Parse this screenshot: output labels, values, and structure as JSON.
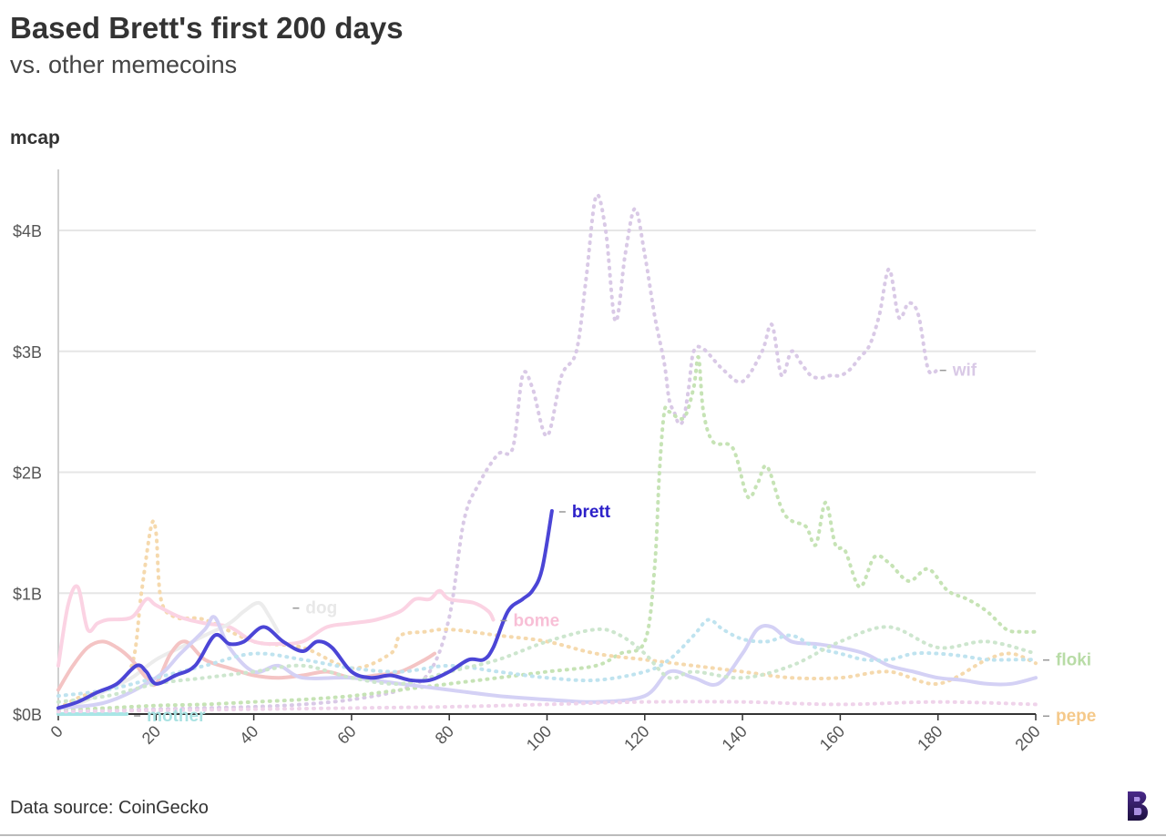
{
  "header": {
    "title": "Based Brett's first 200 days",
    "subtitle": "vs. other memecoins"
  },
  "footer": {
    "source": "Data source: CoinGecko"
  },
  "logo_icon": "brand-b-logo-icon",
  "chart_data": {
    "type": "line",
    "title": "Based Brett's first 200 days",
    "subtitle": "vs. other memecoins",
    "ylabel": "mcap",
    "xlabel": "",
    "xlim": [
      0,
      200
    ],
    "ylim": [
      0,
      4.5
    ],
    "x_ticks": [
      0,
      20,
      40,
      60,
      80,
      100,
      120,
      140,
      160,
      180,
      200
    ],
    "x_tick_labels": [
      "0",
      "20",
      "40",
      "60",
      "80",
      "100",
      "120",
      "140",
      "160",
      "180",
      "200"
    ],
    "y_ticks": [
      0,
      1,
      2,
      3,
      4
    ],
    "y_tick_labels": [
      "$0B",
      "$1B",
      "$2B",
      "$3B",
      "$4B"
    ],
    "grid": "horizontal",
    "series": [
      {
        "name": "wif",
        "color": "#d9c9e6",
        "style": "dotted",
        "label_color": "#d9c9e6",
        "x": [
          0,
          10,
          20,
          30,
          40,
          50,
          60,
          70,
          76,
          80,
          83,
          86,
          90,
          93,
          95,
          97,
          100,
          103,
          106,
          108,
          110,
          112,
          114,
          116,
          118,
          120,
          122,
          124,
          125,
          126,
          127,
          128,
          129,
          130,
          132,
          136,
          140,
          144,
          146,
          148,
          150,
          152,
          154,
          156,
          158,
          160,
          162,
          164,
          166,
          168,
          170,
          172,
          174,
          176,
          178,
          180
        ],
        "y": [
          0.02,
          0.03,
          0.04,
          0.05,
          0.06,
          0.08,
          0.12,
          0.2,
          0.35,
          0.8,
          1.6,
          1.9,
          2.15,
          2.2,
          2.8,
          2.7,
          2.3,
          2.8,
          3.0,
          3.6,
          4.28,
          4.0,
          3.25,
          3.8,
          4.18,
          3.8,
          3.3,
          2.9,
          2.6,
          2.5,
          2.4,
          2.45,
          2.7,
          3.0,
          3.02,
          2.85,
          2.75,
          3.0,
          3.22,
          2.8,
          3.0,
          2.9,
          2.8,
          2.78,
          2.8,
          2.8,
          2.85,
          2.95,
          3.05,
          3.3,
          3.68,
          3.28,
          3.4,
          3.3,
          2.85,
          2.85
        ]
      },
      {
        "name": "floki",
        "color": "#c6e3b5",
        "style": "dotted",
        "label_color": "#b8dca6",
        "x": [
          0,
          10,
          20,
          30,
          40,
          50,
          60,
          70,
          80,
          90,
          100,
          110,
          115,
          120,
          122,
          123,
          124,
          125,
          128,
          130,
          131,
          132,
          134,
          138,
          141,
          143,
          145,
          148,
          150,
          153,
          155,
          157,
          159,
          161,
          164,
          167,
          170,
          174,
          178,
          182,
          186,
          190,
          194,
          197,
          200
        ],
        "y": [
          0.03,
          0.05,
          0.07,
          0.08,
          0.1,
          0.12,
          0.15,
          0.2,
          0.25,
          0.3,
          0.35,
          0.4,
          0.5,
          0.6,
          1.2,
          2.0,
          2.5,
          2.5,
          2.45,
          2.7,
          2.95,
          2.5,
          2.25,
          2.2,
          1.8,
          1.9,
          2.05,
          1.7,
          1.6,
          1.55,
          1.4,
          1.75,
          1.4,
          1.35,
          1.05,
          1.3,
          1.25,
          1.1,
          1.2,
          1.02,
          0.95,
          0.85,
          0.7,
          0.68,
          0.68
        ]
      },
      {
        "name": "pepe",
        "color": "#f5d9ad",
        "style": "dotted",
        "label_color": "#f5c98a",
        "x": [
          0,
          5,
          10,
          15,
          17,
          19,
          20,
          21,
          24,
          30,
          40,
          50,
          60,
          68,
          70,
          75,
          80,
          90,
          100,
          110,
          120,
          130,
          140,
          150,
          160,
          170,
          180,
          190,
          195,
          200
        ],
        "y": [
          0.05,
          0.15,
          0.2,
          0.4,
          1.0,
          1.55,
          1.5,
          0.95,
          0.8,
          0.78,
          0.6,
          0.55,
          0.38,
          0.5,
          0.65,
          0.68,
          0.7,
          0.65,
          0.6,
          0.5,
          0.45,
          0.4,
          0.35,
          0.3,
          0.3,
          0.35,
          0.25,
          0.45,
          0.5,
          0.42
        ]
      },
      {
        "name": "brett",
        "color": "#4b45d6",
        "style": "solid",
        "label_color": "#2d21c9",
        "x": [
          0,
          4,
          8,
          12,
          16,
          18,
          20,
          24,
          28,
          32,
          35,
          38,
          42,
          46,
          50,
          53,
          56,
          60,
          64,
          68,
          72,
          76,
          80,
          84,
          87,
          89,
          92,
          95,
          97,
          99,
          101
        ],
        "y": [
          0.05,
          0.1,
          0.18,
          0.25,
          0.4,
          0.35,
          0.25,
          0.32,
          0.4,
          0.65,
          0.58,
          0.6,
          0.72,
          0.6,
          0.52,
          0.6,
          0.55,
          0.35,
          0.3,
          0.32,
          0.28,
          0.28,
          0.35,
          0.45,
          0.45,
          0.55,
          0.85,
          0.95,
          1.02,
          1.2,
          1.68
        ]
      },
      {
        "name": "bome",
        "color": "#fbd3e3",
        "style": "solid",
        "label_color": "#f8bfd6",
        "x": [
          0,
          2,
          4,
          6,
          8,
          10,
          15,
          18,
          20,
          25,
          30,
          35,
          40,
          45,
          50,
          55,
          60,
          65,
          70,
          73,
          76,
          78,
          80,
          85,
          88,
          89
        ],
        "y": [
          0.4,
          0.9,
          1.05,
          0.7,
          0.75,
          0.78,
          0.8,
          0.95,
          0.9,
          0.8,
          0.75,
          0.72,
          0.6,
          0.58,
          0.6,
          0.72,
          0.75,
          0.78,
          0.85,
          0.95,
          0.95,
          1.02,
          0.95,
          0.92,
          0.85,
          0.78
        ]
      },
      {
        "name": "dog",
        "color": "#ececec",
        "style": "solid",
        "label_color": "#e8e8e8",
        "x": [
          0,
          5,
          10,
          15,
          20,
          25,
          30,
          35,
          38,
          41,
          43,
          45
        ],
        "y": [
          0.05,
          0.1,
          0.2,
          0.3,
          0.45,
          0.55,
          0.65,
          0.75,
          0.85,
          0.92,
          0.82,
          0.68
        ]
      },
      {
        "name": "mother",
        "color": "#a9e6e6",
        "style": "solid",
        "label_color": "#a9e2e2",
        "x": [
          0,
          3,
          6,
          9,
          12,
          14
        ],
        "y": [
          0.0,
          0.0,
          0.0,
          0.0,
          0.0,
          0.0
        ]
      },
      {
        "name": "",
        "color": "#f4c4c4",
        "style": "solid",
        "label_color": "",
        "x": [
          0,
          3,
          6,
          9,
          12,
          15,
          18,
          20,
          23,
          26,
          30,
          35,
          40,
          45,
          50,
          55,
          60,
          65,
          70,
          75,
          77
        ],
        "y": [
          0.2,
          0.4,
          0.55,
          0.6,
          0.55,
          0.45,
          0.3,
          0.25,
          0.5,
          0.6,
          0.45,
          0.38,
          0.32,
          0.3,
          0.32,
          0.35,
          0.3,
          0.32,
          0.35,
          0.45,
          0.5
        ]
      },
      {
        "name": "",
        "color": "#d4d1f5",
        "style": "solid",
        "label_color": "",
        "x": [
          0,
          10,
          20,
          25,
          30,
          32,
          35,
          40,
          45,
          50,
          60,
          70,
          80,
          90,
          100,
          110,
          120,
          125,
          130,
          135,
          140,
          143,
          146,
          150,
          155,
          160,
          165,
          170,
          175,
          180,
          185,
          190,
          195,
          200
        ],
        "y": [
          0.05,
          0.1,
          0.3,
          0.5,
          0.7,
          0.8,
          0.55,
          0.35,
          0.4,
          0.3,
          0.3,
          0.25,
          0.2,
          0.15,
          0.12,
          0.1,
          0.15,
          0.35,
          0.3,
          0.25,
          0.5,
          0.7,
          0.72,
          0.6,
          0.58,
          0.55,
          0.5,
          0.4,
          0.35,
          0.3,
          0.28,
          0.25,
          0.25,
          0.3
        ]
      },
      {
        "name": "",
        "color": "#bfe3ef",
        "style": "dotted",
        "label_color": "",
        "x": [
          0,
          10,
          20,
          30,
          40,
          50,
          60,
          70,
          80,
          90,
          100,
          110,
          120,
          125,
          130,
          133,
          136,
          140,
          145,
          150,
          155,
          160,
          165,
          170,
          175,
          180,
          185,
          190,
          195,
          200
        ],
        "y": [
          0.15,
          0.2,
          0.3,
          0.4,
          0.5,
          0.45,
          0.38,
          0.35,
          0.4,
          0.35,
          0.3,
          0.28,
          0.35,
          0.45,
          0.65,
          0.78,
          0.7,
          0.62,
          0.6,
          0.65,
          0.55,
          0.5,
          0.45,
          0.45,
          0.5,
          0.5,
          0.48,
          0.45,
          0.45,
          0.45
        ]
      },
      {
        "name": "",
        "color": "#cde6ce",
        "style": "dotted",
        "label_color": "",
        "x": [
          0,
          10,
          20,
          30,
          40,
          50,
          60,
          70,
          80,
          90,
          100,
          110,
          115,
          120,
          125,
          130,
          140,
          150,
          160,
          170,
          180,
          190,
          200
        ],
        "y": [
          0.1,
          0.15,
          0.25,
          0.3,
          0.35,
          0.4,
          0.3,
          0.25,
          0.35,
          0.45,
          0.6,
          0.7,
          0.65,
          0.5,
          0.3,
          0.35,
          0.3,
          0.4,
          0.6,
          0.72,
          0.55,
          0.6,
          0.5
        ]
      },
      {
        "name": "",
        "color": "#efd3ea",
        "style": "dotted",
        "label_color": "",
        "x": [
          0,
          20,
          40,
          60,
          80,
          100,
          120,
          140,
          160,
          180,
          200
        ],
        "y": [
          0.02,
          0.03,
          0.04,
          0.05,
          0.06,
          0.08,
          0.1,
          0.1,
          0.08,
          0.1,
          0.08
        ]
      }
    ]
  }
}
